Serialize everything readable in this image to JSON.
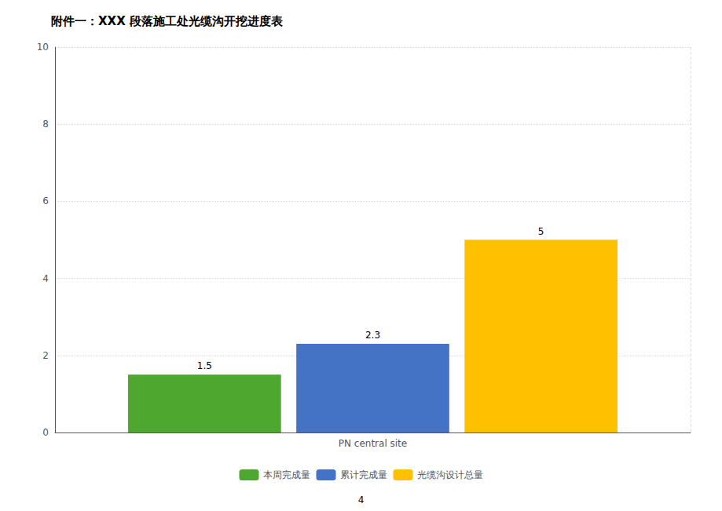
{
  "chart_data": {
    "type": "bar",
    "title": "附件一：XXX 段落施工处光缆沟开挖进度表",
    "categories": [
      "PN central site"
    ],
    "series": [
      {
        "name": "本周完成量",
        "color": "#4ea72e",
        "values": [
          1.5
        ]
      },
      {
        "name": "累计完成量",
        "color": "#4472c4",
        "values": [
          2.3
        ]
      },
      {
        "name": "光缆沟设计总量",
        "color": "#ffc000",
        "values": [
          5.0
        ]
      }
    ],
    "ylim": [
      0,
      10
    ],
    "yticks": [
      0,
      2,
      4,
      6,
      8,
      10
    ],
    "grid": true,
    "data_labels": true,
    "legend": "bottom",
    "annotations": [
      "4"
    ]
  }
}
